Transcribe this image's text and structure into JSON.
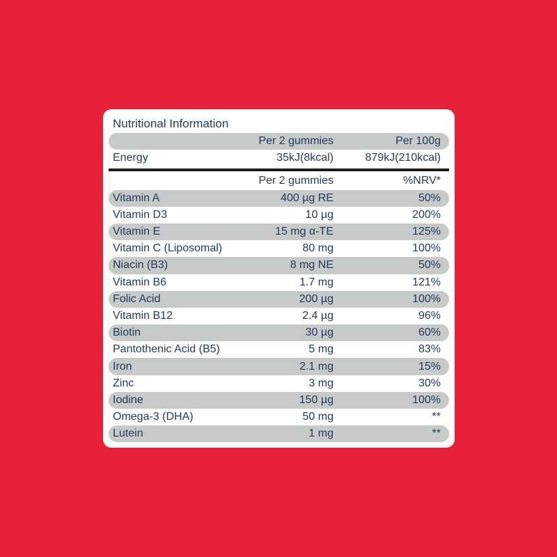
{
  "title": "Nutritional Information",
  "top_header": {
    "label": "",
    "per_serving": "Per 2 gummies",
    "per_100g": "Per 100g"
  },
  "energy": {
    "label": "Energy",
    "per_serving": "35kJ(8kcal)",
    "per_100g": "879kJ(210kcal)"
  },
  "sub_header": {
    "label": "",
    "per_serving": "Per 2 gummies",
    "nrv": "%NRV*"
  },
  "nutrients": [
    {
      "name": "Vitamin A",
      "amount": "400 µg RE",
      "nrv": "50%"
    },
    {
      "name": "Vitamin D3",
      "amount": "10 µg",
      "nrv": "200%"
    },
    {
      "name": "Vitamin E",
      "amount": "15 mg α-TE",
      "nrv": "125%"
    },
    {
      "name": "Vitamin C (Liposomal)",
      "amount": "80 mg",
      "nrv": "100%"
    },
    {
      "name": "Niacin (B3)",
      "amount": "8 mg NE",
      "nrv": "50%"
    },
    {
      "name": "Vitamin B6",
      "amount": "1.7 mg",
      "nrv": "121%"
    },
    {
      "name": "Folic Acid",
      "amount": "200 µg",
      "nrv": "100%"
    },
    {
      "name": "Vitamin B12",
      "amount": "2.4 µg",
      "nrv": "96%"
    },
    {
      "name": "Biotin",
      "amount": "30 µg",
      "nrv": "60%"
    },
    {
      "name": "Pantothenic Acid (B5)",
      "amount": "5 mg",
      "nrv": "83%"
    },
    {
      "name": "Iron",
      "amount": "2.1 mg",
      "nrv": "15%"
    },
    {
      "name": "Zinc",
      "amount": "3 mg",
      "nrv": "30%"
    },
    {
      "name": "Iodine",
      "amount": "150 µg",
      "nrv": "100%"
    },
    {
      "name": "Omega-3 (DHA)",
      "amount": "50 mg",
      "nrv": "**"
    },
    {
      "name": "Lutein",
      "amount": "1 mg",
      "nrv": "**"
    }
  ],
  "colors": {
    "background": "#e8213a",
    "panel": "#ffffff",
    "text": "#1f3a5a",
    "shade": "#c8c9c9",
    "divider": "#1c1c1c"
  }
}
